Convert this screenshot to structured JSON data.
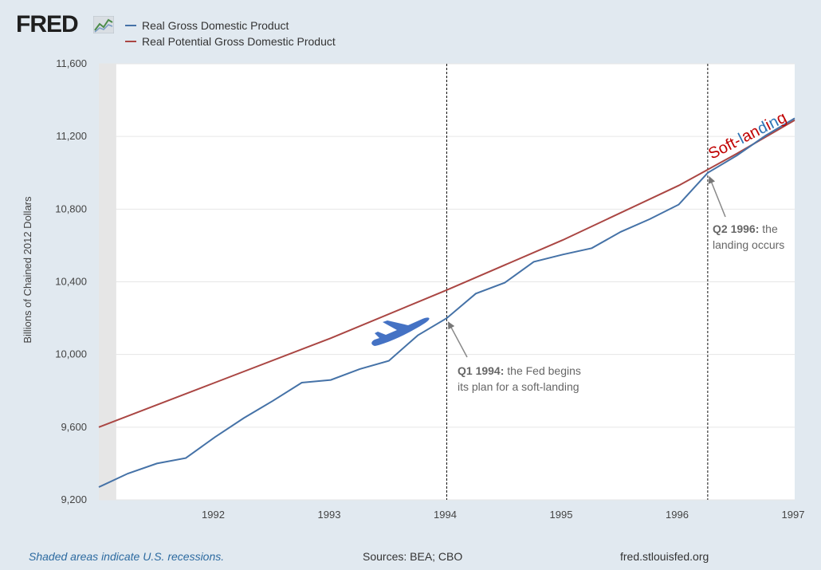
{
  "brand": "FRED",
  "legend": [
    {
      "label": "Real Gross Domestic Product",
      "color": "#4572a7"
    },
    {
      "label": "Real Potential Gross Domestic Product",
      "color": "#aa4643"
    }
  ],
  "footer": {
    "note": "Shaded areas indicate U.S. recessions.",
    "source": "Sources: BEA; CBO",
    "site": "fred.stlouisfed.org"
  },
  "chart_data": {
    "type": "line",
    "ylabel": "Billions of Chained 2012 Dollars",
    "xlim": [
      1991.0,
      1997.0
    ],
    "ylim": [
      9200,
      11600
    ],
    "yticks": [
      9200,
      9600,
      10000,
      10400,
      10800,
      11200,
      11600
    ],
    "ytick_labels": [
      "9,200",
      "9,600",
      "10,000",
      "10,400",
      "10,800",
      "11,200",
      "11,600"
    ],
    "xticks": [
      1992,
      1993,
      1994,
      1995,
      1996,
      1997
    ],
    "xtick_labels": [
      "1992",
      "1993",
      "1994",
      "1995",
      "1996",
      "1997"
    ],
    "recession": [
      1991.0,
      1991.15
    ],
    "series": [
      {
        "name": "Real Gross Domestic Product",
        "color": "#4572a7",
        "x": [
          1991.0,
          1991.25,
          1991.5,
          1991.75,
          1992.0,
          1992.25,
          1992.5,
          1992.75,
          1993.0,
          1993.25,
          1993.5,
          1993.75,
          1994.0,
          1994.25,
          1994.5,
          1994.75,
          1995.0,
          1995.25,
          1995.5,
          1995.75,
          1996.0,
          1996.25,
          1996.5,
          1996.75,
          1997.0
        ],
        "values": [
          9270,
          9345,
          9400,
          9430,
          9545,
          9650,
          9745,
          9845,
          9860,
          9920,
          9965,
          10105,
          10200,
          10335,
          10395,
          10510,
          10550,
          10585,
          10675,
          10745,
          10825,
          11000,
          11095,
          11205,
          11300
        ]
      },
      {
        "name": "Real Potential Gross Domestic Product",
        "color": "#aa4643",
        "x": [
          1991.0,
          1992.0,
          1993.0,
          1994.0,
          1995.0,
          1996.0,
          1996.5,
          1997.0
        ],
        "values": [
          9600,
          9845,
          10090,
          10355,
          10630,
          10930,
          11105,
          11290
        ]
      }
    ],
    "vlines": [
      1994.0,
      1996.25
    ],
    "annotations": [
      {
        "bold": "Q1 1994:",
        "text": " the Fed begins",
        "line2": "its plan for a soft-landing",
        "x": 1994.0,
        "y": 10200
      },
      {
        "bold": "Q2 1996:",
        "text": " the",
        "line2": "landing occurs",
        "x": 1996.25,
        "y": 11000
      }
    ],
    "soft_landing_label": "Soft-landing",
    "soft_landing_colors": [
      "#c00000",
      "#c00000",
      "#c00000",
      "#c00000",
      "#c00000",
      "#2e75b6",
      "#c00000",
      "#c00000",
      "#2e75b6",
      "#c00000",
      "#2e75b6",
      "#c00000"
    ]
  }
}
